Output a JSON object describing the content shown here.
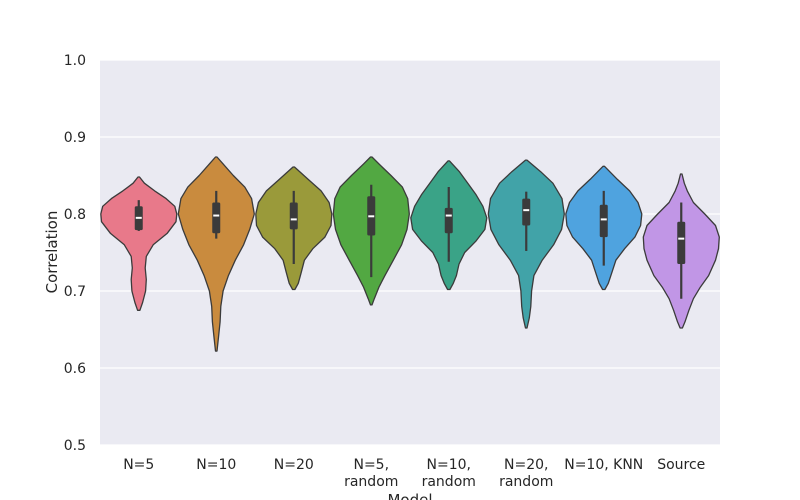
{
  "chart_data": {
    "type": "violin",
    "xlabel": "Model",
    "ylabel": "Correlation",
    "ylim": [
      0.5,
      1.0
    ],
    "yticks": [
      "0.5",
      "0.6",
      "0.7",
      "0.8",
      "0.9",
      "1.0"
    ],
    "grid": true,
    "background_color": "#eaeaf2",
    "categories": [
      {
        "label": "N=5",
        "label_lines": [
          "N=5"
        ],
        "color": "#e8798a",
        "min": 0.675,
        "max": 0.848,
        "q1": 0.779,
        "median": 0.795,
        "q3": 0.81,
        "whisker_low": 0.778,
        "whisker_high": 0.818,
        "density": [
          [
            0.675,
            0.03
          ],
          [
            0.685,
            0.1
          ],
          [
            0.7,
            0.18
          ],
          [
            0.715,
            0.2
          ],
          [
            0.73,
            0.17
          ],
          [
            0.745,
            0.2
          ],
          [
            0.76,
            0.38
          ],
          [
            0.775,
            0.75
          ],
          [
            0.79,
            0.98
          ],
          [
            0.8,
            1.0
          ],
          [
            0.81,
            0.95
          ],
          [
            0.82,
            0.72
          ],
          [
            0.83,
            0.42
          ],
          [
            0.84,
            0.15
          ],
          [
            0.848,
            0.02
          ]
        ]
      },
      {
        "label": "N=10",
        "label_lines": [
          "N=10"
        ],
        "color": "#c98b3e",
        "min": 0.622,
        "max": 0.874,
        "q1": 0.775,
        "median": 0.798,
        "q3": 0.815,
        "whisker_low": 0.768,
        "whisker_high": 0.83,
        "density": [
          [
            0.622,
            0.02
          ],
          [
            0.64,
            0.06
          ],
          [
            0.66,
            0.1
          ],
          [
            0.68,
            0.12
          ],
          [
            0.7,
            0.18
          ],
          [
            0.72,
            0.32
          ],
          [
            0.74,
            0.5
          ],
          [
            0.76,
            0.72
          ],
          [
            0.78,
            0.88
          ],
          [
            0.8,
            1.0
          ],
          [
            0.82,
            0.93
          ],
          [
            0.835,
            0.75
          ],
          [
            0.85,
            0.45
          ],
          [
            0.865,
            0.18
          ],
          [
            0.874,
            0.02
          ]
        ]
      },
      {
        "label": "N=20",
        "label_lines": [
          "N=20"
        ],
        "color": "#9a9a3a",
        "min": 0.702,
        "max": 0.861,
        "q1": 0.78,
        "median": 0.793,
        "q3": 0.815,
        "whisker_low": 0.735,
        "whisker_high": 0.83,
        "density": [
          [
            0.702,
            0.03
          ],
          [
            0.71,
            0.12
          ],
          [
            0.725,
            0.2
          ],
          [
            0.74,
            0.28
          ],
          [
            0.755,
            0.5
          ],
          [
            0.77,
            0.82
          ],
          [
            0.785,
            0.98
          ],
          [
            0.8,
            1.0
          ],
          [
            0.815,
            0.93
          ],
          [
            0.83,
            0.72
          ],
          [
            0.845,
            0.38
          ],
          [
            0.861,
            0.02
          ]
        ]
      },
      {
        "label": "N=5, random",
        "label_lines": [
          "N=5,",
          "random"
        ],
        "color": "#52a842",
        "min": 0.682,
        "max": 0.874,
        "q1": 0.772,
        "median": 0.797,
        "q3": 0.823,
        "whisker_low": 0.718,
        "whisker_high": 0.838,
        "density": [
          [
            0.682,
            0.02
          ],
          [
            0.69,
            0.08
          ],
          [
            0.705,
            0.2
          ],
          [
            0.72,
            0.36
          ],
          [
            0.74,
            0.58
          ],
          [
            0.76,
            0.8
          ],
          [
            0.78,
            0.94
          ],
          [
            0.8,
            1.0
          ],
          [
            0.82,
            0.96
          ],
          [
            0.835,
            0.82
          ],
          [
            0.85,
            0.52
          ],
          [
            0.865,
            0.2
          ],
          [
            0.874,
            0.02
          ]
        ]
      },
      {
        "label": "N=10, random",
        "label_lines": [
          "N=10,",
          "random"
        ],
        "color": "#3aa387",
        "min": 0.702,
        "max": 0.869,
        "q1": 0.775,
        "median": 0.798,
        "q3": 0.808,
        "whisker_low": 0.738,
        "whisker_high": 0.835,
        "density": [
          [
            0.702,
            0.03
          ],
          [
            0.71,
            0.12
          ],
          [
            0.72,
            0.2
          ],
          [
            0.735,
            0.27
          ],
          [
            0.75,
            0.42
          ],
          [
            0.765,
            0.72
          ],
          [
            0.78,
            0.95
          ],
          [
            0.795,
            1.0
          ],
          [
            0.81,
            0.9
          ],
          [
            0.825,
            0.72
          ],
          [
            0.84,
            0.5
          ],
          [
            0.855,
            0.28
          ],
          [
            0.869,
            0.02
          ]
        ]
      },
      {
        "label": "N=20, random",
        "label_lines": [
          "N=20,",
          "random"
        ],
        "color": "#41a3a8",
        "min": 0.652,
        "max": 0.87,
        "q1": 0.785,
        "median": 0.805,
        "q3": 0.82,
        "whisker_low": 0.752,
        "whisker_high": 0.829,
        "density": [
          [
            0.652,
            0.02
          ],
          [
            0.665,
            0.08
          ],
          [
            0.68,
            0.12
          ],
          [
            0.7,
            0.14
          ],
          [
            0.72,
            0.2
          ],
          [
            0.74,
            0.42
          ],
          [
            0.76,
            0.72
          ],
          [
            0.78,
            0.93
          ],
          [
            0.8,
            1.0
          ],
          [
            0.82,
            0.94
          ],
          [
            0.84,
            0.7
          ],
          [
            0.855,
            0.38
          ],
          [
            0.87,
            0.02
          ]
        ]
      },
      {
        "label": "N=10, KNN",
        "label_lines": [
          "N=10, KNN"
        ],
        "color": "#4fa3df",
        "min": 0.702,
        "max": 0.862,
        "q1": 0.77,
        "median": 0.793,
        "q3": 0.812,
        "whisker_low": 0.733,
        "whisker_high": 0.83,
        "density": [
          [
            0.702,
            0.03
          ],
          [
            0.71,
            0.12
          ],
          [
            0.725,
            0.22
          ],
          [
            0.74,
            0.32
          ],
          [
            0.755,
            0.55
          ],
          [
            0.77,
            0.82
          ],
          [
            0.785,
            0.97
          ],
          [
            0.8,
            1.0
          ],
          [
            0.815,
            0.9
          ],
          [
            0.83,
            0.68
          ],
          [
            0.845,
            0.36
          ],
          [
            0.862,
            0.02
          ]
        ]
      },
      {
        "label": "Source",
        "label_lines": [
          "Source"
        ],
        "color": "#c196e6",
        "min": 0.652,
        "max": 0.852,
        "q1": 0.735,
        "median": 0.768,
        "q3": 0.79,
        "whisker_low": 0.69,
        "whisker_high": 0.815,
        "density": [
          [
            0.652,
            0.03
          ],
          [
            0.66,
            0.1
          ],
          [
            0.675,
            0.2
          ],
          [
            0.69,
            0.32
          ],
          [
            0.705,
            0.5
          ],
          [
            0.72,
            0.72
          ],
          [
            0.74,
            0.9
          ],
          [
            0.755,
            0.98
          ],
          [
            0.77,
            1.0
          ],
          [
            0.785,
            0.9
          ],
          [
            0.8,
            0.62
          ],
          [
            0.815,
            0.32
          ],
          [
            0.83,
            0.16
          ],
          [
            0.84,
            0.08
          ],
          [
            0.852,
            0.02
          ]
        ]
      }
    ]
  }
}
